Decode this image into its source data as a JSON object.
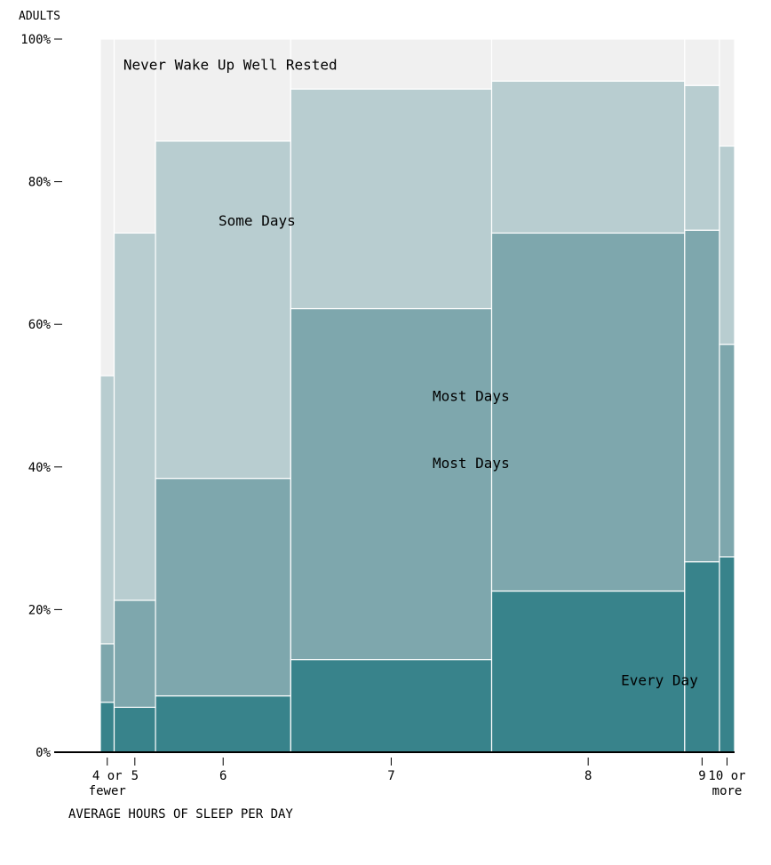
{
  "chart_data": {
    "type": "mosaic",
    "y_title": "ADULTS",
    "x_title": "AVERAGE HOURS OF SLEEP PER DAY",
    "y_ticks": [
      {
        "value": 0,
        "label": "0%"
      },
      {
        "value": 20,
        "label": "20%"
      },
      {
        "value": 40,
        "label": "40%"
      },
      {
        "value": 60,
        "label": "60%"
      },
      {
        "value": 80,
        "label": "80%"
      },
      {
        "value": 100,
        "label": "100%"
      }
    ],
    "ylim": [
      0,
      100
    ],
    "series_names": [
      "Every Day",
      "Most Days",
      "Some Days",
      "Never Wake Up Well Rested"
    ],
    "colors": {
      "Every Day": "#38838b",
      "Most Days": "#7ea7ad",
      "Some Days": "#b8cdd0",
      "Never Wake Up Well Rested": "#f0f0f0",
      "axis": "#000000"
    },
    "columns": [
      {
        "category": "4 or fewer",
        "share": 2.1,
        "values": [
          7.0,
          8.2,
          37.6,
          47.2
        ]
      },
      {
        "category": "5",
        "share": 6.3,
        "values": [
          6.3,
          15.0,
          51.5,
          27.2
        ]
      },
      {
        "category": "6",
        "share": 20.6,
        "values": [
          7.9,
          30.5,
          47.3,
          14.3
        ]
      },
      {
        "category": "7",
        "share": 30.6,
        "values": [
          13.0,
          49.2,
          30.8,
          7.0
        ]
      },
      {
        "category": "8",
        "share": 29.4,
        "values": [
          22.6,
          50.2,
          21.3,
          5.9
        ]
      },
      {
        "category": "9",
        "share": 5.3,
        "values": [
          26.7,
          46.5,
          20.3,
          6.5
        ]
      },
      {
        "category": "10 or more",
        "share": 2.3,
        "values": [
          27.4,
          29.8,
          27.8,
          15.0
        ]
      }
    ],
    "tick_labels": [
      {
        "category": "4 or fewer",
        "lines": [
          "4 or",
          "fewer"
        ]
      },
      {
        "category": "5",
        "lines": [
          "5"
        ]
      },
      {
        "category": "6",
        "lines": [
          "6"
        ]
      },
      {
        "category": "7",
        "lines": [
          "7"
        ]
      },
      {
        "category": "8",
        "lines": [
          "8"
        ]
      },
      {
        "category": "9",
        "lines": [
          "9"
        ]
      },
      {
        "category": "10 or more",
        "lines": [
          "10 or",
          "more"
        ]
      }
    ],
    "annotations": [
      {
        "text": "Never Wake Up Well Rested",
        "column": "4 or fewer",
        "series": "Never Wake Up Well Rested",
        "x_share": 3.5,
        "y_value": 96.3
      },
      {
        "text": "Some Days",
        "column": "6",
        "series": "Some Days",
        "x_share": 18.0,
        "y_value": 74.5
      },
      {
        "text": "Most Days",
        "column": "7",
        "series": "Most Days",
        "x_share": 50.6,
        "y_value": 49.9
      },
      {
        "text": "Most Days",
        "column": "7",
        "series": "Most Days",
        "x_share": 50.6,
        "y_value": 40.5
      },
      {
        "text": "Every Day",
        "column": "8",
        "series": "Every Day",
        "x_share": 79.3,
        "y_value": 10.0
      }
    ]
  }
}
